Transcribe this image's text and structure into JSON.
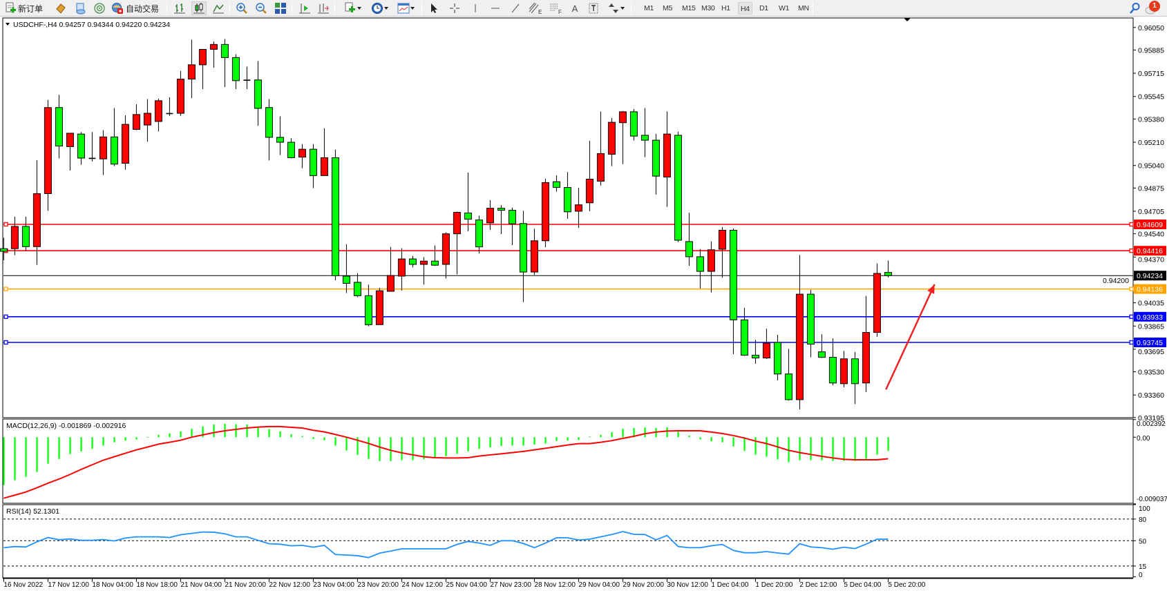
{
  "toolbar": {
    "new_order_label": "新订单",
    "autotrade_label": "自动交易",
    "timeframes": [
      "M1",
      "M5",
      "M15",
      "M30",
      "H1",
      "H4",
      "D1",
      "W1",
      "MN"
    ],
    "active_timeframe": "H4",
    "notification_count": "1",
    "fibo_channel_tag": "E",
    "fibo_tag": "F",
    "text_tool": "A"
  },
  "chart_data": [
    {
      "type": "candlestick",
      "title": "USDCHF-,H4  0.94257 0.94344 0.94220 0.94234",
      "symbol": "USDCHF-",
      "timeframe": "H4",
      "up_color": "#ff0000",
      "down_color": "#00ff00",
      "ylim": [
        0.93195,
        0.9605
      ],
      "y_ticks": [
        "0.96050",
        "0.95885",
        "0.95715",
        "0.95545",
        "0.95380",
        "0.95210",
        "0.95040",
        "0.94875",
        "0.94705",
        "0.94540",
        "0.94370",
        "0.94200",
        "0.94035",
        "0.93865",
        "0.93695",
        "0.93530",
        "0.93360",
        "0.93195"
      ],
      "x_tick_every": 4,
      "x_ticks": [
        "16 Nov 2022",
        "17 Nov 12:00",
        "18 Nov 04:00",
        "18 Nov 18:00",
        "21 Nov 04:00",
        "21 Nov 20:00",
        "22 Nov 12:00",
        "23 Nov 04:00",
        "23 Nov 20:00",
        "24 Nov 12:00",
        "25 Nov 04:00",
        "27 Nov 23:00",
        "28 Nov 12:00",
        "29 Nov 04:00",
        "29 Nov 20:00",
        "30 Nov 12:00",
        "1 Dec 04:00",
        "1 Dec 20:00",
        "2 Dec 12:00",
        "5 Dec 04:00",
        "5 Dec 20:00"
      ],
      "ohlc": [
        [
          0.94431,
          0.94511,
          0.94346,
          0.94412
        ],
        [
          0.94431,
          0.94665,
          0.94384,
          0.94594
        ],
        [
          0.94594,
          0.94665,
          0.94417,
          0.94446
        ],
        [
          0.94446,
          0.95079,
          0.94312,
          0.94834
        ],
        [
          0.94834,
          0.9552,
          0.94709,
          0.95464
        ],
        [
          0.95464,
          0.95557,
          0.95092,
          0.95182
        ],
        [
          0.95178,
          0.95276,
          0.95003,
          0.95276
        ],
        [
          0.9527,
          0.95285,
          0.95045,
          0.95094
        ],
        [
          0.95092,
          0.95285,
          0.95069,
          0.9509
        ],
        [
          0.95088,
          0.95298,
          0.9497,
          0.95249
        ],
        [
          0.95249,
          0.9546,
          0.95035,
          0.9505
        ],
        [
          0.95056,
          0.95407,
          0.95009,
          0.95341
        ],
        [
          0.95304,
          0.95488,
          0.95298,
          0.95413
        ],
        [
          0.95336,
          0.95526,
          0.95214,
          0.95422
        ],
        [
          0.95362,
          0.95529,
          0.95289,
          0.95514
        ],
        [
          0.95418,
          0.95539,
          0.95403,
          0.9542
        ],
        [
          0.95422,
          0.95732,
          0.95403,
          0.95672
        ],
        [
          0.95672,
          0.95961,
          0.95533,
          0.95777
        ],
        [
          0.95777,
          0.9589,
          0.95599,
          0.9589
        ],
        [
          0.9589,
          0.95948,
          0.95755,
          0.95926
        ],
        [
          0.95926,
          0.95965,
          0.95614,
          0.9583
        ],
        [
          0.9583,
          0.95854,
          0.95599,
          0.95661
        ],
        [
          0.95664,
          0.95764,
          0.95599,
          0.95662
        ],
        [
          0.95666,
          0.95805,
          0.9533,
          0.95458
        ],
        [
          0.95464,
          0.95526,
          0.95077,
          0.95246
        ],
        [
          0.95246,
          0.954,
          0.95116,
          0.9521
        ],
        [
          0.9521,
          0.9524,
          0.95092,
          0.95097
        ],
        [
          0.95101,
          0.95197,
          0.9502,
          0.95159
        ],
        [
          0.95159,
          0.95197,
          0.94874,
          0.94966
        ],
        [
          0.94966,
          0.95313,
          0.94966,
          0.95097
        ],
        [
          0.95097,
          0.95156,
          0.942,
          0.94233
        ],
        [
          0.9423,
          0.94464,
          0.94106,
          0.94177
        ],
        [
          0.94185,
          0.94252,
          0.94076,
          0.94087
        ],
        [
          0.94087,
          0.94168,
          0.93863,
          0.93875
        ],
        [
          0.93875,
          0.94145,
          0.93875,
          0.94123
        ],
        [
          0.94119,
          0.94444,
          0.94119,
          0.94235
        ],
        [
          0.9423,
          0.94434,
          0.94125,
          0.94356
        ],
        [
          0.94356,
          0.94378,
          0.94294,
          0.94316
        ],
        [
          0.94316,
          0.94369,
          0.94168,
          0.9434
        ],
        [
          0.9434,
          0.94455,
          0.94305,
          0.9431
        ],
        [
          0.94316,
          0.94551,
          0.94213,
          0.9454
        ],
        [
          0.9454,
          0.94703,
          0.94243,
          0.94697
        ],
        [
          0.94692,
          0.94988,
          0.94558,
          0.94647
        ],
        [
          0.94641,
          0.94673,
          0.94395,
          0.94444
        ],
        [
          0.9462,
          0.94786,
          0.94568,
          0.94727
        ],
        [
          0.94727,
          0.9475,
          0.94538,
          0.94712
        ],
        [
          0.94712,
          0.94731,
          0.94457,
          0.94613
        ],
        [
          0.94615,
          0.94709,
          0.9404,
          0.9426
        ],
        [
          0.9426,
          0.94577,
          0.94239,
          0.94489
        ],
        [
          0.94489,
          0.94943,
          0.94442,
          0.94915
        ],
        [
          0.94921,
          0.94968,
          0.94848,
          0.94879
        ],
        [
          0.94879,
          0.94992,
          0.9465,
          0.94701
        ],
        [
          0.94705,
          0.94876,
          0.94583,
          0.94752
        ],
        [
          0.94767,
          0.95221,
          0.94705,
          0.9494
        ],
        [
          0.94925,
          0.95435,
          0.94893,
          0.95127
        ],
        [
          0.95122,
          0.95388,
          0.95035,
          0.95356
        ],
        [
          0.95353,
          0.95439,
          0.9505,
          0.95433
        ],
        [
          0.95433,
          0.95454,
          0.95223,
          0.95255
        ],
        [
          0.95261,
          0.9546,
          0.95101,
          0.95225
        ],
        [
          0.95225,
          0.95272,
          0.94827,
          0.94962
        ],
        [
          0.94955,
          0.95435,
          0.94737,
          0.9527
        ],
        [
          0.95261,
          0.95287,
          0.94479,
          0.94493
        ],
        [
          0.94483,
          0.94694,
          0.94305,
          0.94372
        ],
        [
          0.94372,
          0.94429,
          0.9414,
          0.94265
        ],
        [
          0.94265,
          0.94485,
          0.94111,
          0.94423
        ],
        [
          0.94427,
          0.9459,
          0.94218,
          0.94566
        ],
        [
          0.94566,
          0.94579,
          0.93659,
          0.9391
        ],
        [
          0.9391,
          0.93999,
          0.93646,
          0.93651
        ],
        [
          0.93651,
          0.93764,
          0.93589,
          0.93631
        ],
        [
          0.93631,
          0.93845,
          0.93623,
          0.9374
        ],
        [
          0.93745,
          0.938,
          0.93467,
          0.93514
        ],
        [
          0.93514,
          0.93698,
          0.93319,
          0.93326
        ],
        [
          0.93326,
          0.94384,
          0.93255,
          0.94098
        ],
        [
          0.94098,
          0.9413,
          0.93636,
          0.93732
        ],
        [
          0.93676,
          0.93805,
          0.93631,
          0.93636
        ],
        [
          0.93636,
          0.93775,
          0.93432,
          0.93448
        ],
        [
          0.93443,
          0.93683,
          0.93417,
          0.93625
        ],
        [
          0.93625,
          0.93676,
          0.93294,
          0.93443
        ],
        [
          0.93448,
          0.94085,
          0.93381,
          0.93818
        ],
        [
          0.93818,
          0.94324,
          0.93786,
          0.9425
        ],
        [
          0.94257,
          0.94344,
          0.9422,
          0.94234
        ]
      ],
      "current_price": {
        "value": 0.94234,
        "label": "0.94234",
        "color": "#000000"
      },
      "horizontal_lines": [
        {
          "value": 0.94609,
          "label": "0.94609",
          "color": "#ff0000"
        },
        {
          "value": 0.94416,
          "label": "0.94416",
          "color": "#ff0000"
        },
        {
          "value": 0.94136,
          "label": "0.94136",
          "color": "#ffa500"
        },
        {
          "value": 0.93933,
          "label": "0.93933",
          "color": "#0000ff"
        },
        {
          "value": 0.93745,
          "label": "0.93745",
          "color": "#0000ff"
        }
      ],
      "annotation_arrow": {
        "color": "#ee2222",
        "from": {
          "bar": 79.8,
          "price": 0.934
        },
        "to": {
          "bar": 84.2,
          "price": 0.9417
        }
      }
    },
    {
      "type": "macd",
      "title": "MACD(12,26,9) -0.001869 -0.002916",
      "ylim": [
        -0.009037,
        0.002392
      ],
      "y_ticks": [
        "0.002392",
        "0.00",
        "-0.009037"
      ],
      "histogram_color": "#00ff00",
      "signal_color": "#ff0000",
      "histogram": [
        -0.00649,
        -0.00583,
        -0.00537,
        -0.00471,
        -0.00359,
        -0.00296,
        -0.00228,
        -0.00193,
        -0.00156,
        -0.00115,
        -0.00069,
        -0.00047,
        -0.00031,
        3e-05,
        0.00031,
        0.00053,
        0.00078,
        0.00115,
        0.00147,
        0.00172,
        0.00181,
        0.00175,
        0.00172,
        0.0014,
        0.00109,
        0.00078,
        0.00041,
        0.00016,
        -0.00025,
        -0.00041,
        -0.00115,
        -0.00181,
        -0.0024,
        -0.00296,
        -0.00324,
        -0.00324,
        -0.00312,
        -0.00312,
        -0.003,
        -0.00281,
        -0.00259,
        -0.00225,
        -0.00193,
        -0.00156,
        -0.0014,
        -0.00119,
        -0.00115,
        -0.00115,
        -0.001,
        -0.00087,
        -0.00053,
        -0.00047,
        -0.00037,
        9e-05,
        0.00031,
        0.00069,
        0.00115,
        0.00125,
        0.00131,
        0.00125,
        0.00134,
        0.00078,
        0.00022,
        -0.00031,
        -0.00056,
        -0.00069,
        -0.00125,
        -0.00187,
        -0.00237,
        -0.00265,
        -0.003,
        -0.0034,
        -0.00312,
        -0.00312,
        -0.00312,
        -0.00321,
        -0.00321,
        -0.00321,
        -0.00296,
        -0.00237,
        -0.001869
      ],
      "signal": [
        -0.00827,
        -0.00786,
        -0.00743,
        -0.00686,
        -0.00624,
        -0.00568,
        -0.00505,
        -0.00437,
        -0.00374,
        -0.00312,
        -0.00265,
        -0.00218,
        -0.00172,
        -0.00134,
        -0.00094,
        -0.00069,
        -0.00041,
        0.0,
        0.00031,
        0.00062,
        0.00087,
        0.00106,
        0.00125,
        0.00137,
        0.00144,
        0.00144,
        0.00134,
        0.00125,
        0.00094,
        0.00072,
        0.00037,
        0.0,
        -0.00041,
        -0.00084,
        -0.00134,
        -0.00178,
        -0.00212,
        -0.0024,
        -0.00265,
        -0.00278,
        -0.00281,
        -0.00281,
        -0.00278,
        -0.00256,
        -0.0024,
        -0.00225,
        -0.00209,
        -0.00193,
        -0.00172,
        -0.0015,
        -0.00128,
        -0.00106,
        -0.00087,
        -0.00087,
        -0.00069,
        -0.00047,
        -0.00016,
        0.00012,
        0.00047,
        0.00069,
        0.00084,
        0.00087,
        0.00087,
        0.00087,
        0.00069,
        0.0005,
        0.00022,
        -0.00012,
        -0.00053,
        -0.00087,
        -0.00131,
        -0.00178,
        -0.00209,
        -0.00234,
        -0.00259,
        -0.00281,
        -0.003,
        -0.00306,
        -0.00306,
        -0.00306,
        -0.002916
      ]
    },
    {
      "type": "line",
      "title": "RSI(14) 52.1301",
      "ylim": [
        0,
        100
      ],
      "y_ticks": [
        "100",
        "80",
        "50",
        "15",
        "0"
      ],
      "levels": [
        80,
        50,
        15
      ],
      "line_color": "#1e90ff",
      "values": [
        40.4,
        42.0,
        41.4,
        48.4,
        54.5,
        51.3,
        52.5,
        50.6,
        50.6,
        51.6,
        49.7,
        53.8,
        55.4,
        55.4,
        55.4,
        54.5,
        58.3,
        60.2,
        62.1,
        61.8,
        59.6,
        55.4,
        55.4,
        50.6,
        45.9,
        45.2,
        43.0,
        43.6,
        41.1,
        43.6,
        30.9,
        30.2,
        29.3,
        26.7,
        32.8,
        35.7,
        38.8,
        38.8,
        38.8,
        38.8,
        38.8,
        44.9,
        49.0,
        46.8,
        43.6,
        50.0,
        50.0,
        46.2,
        40.4,
        46.8,
        54.1,
        54.1,
        51.0,
        52.2,
        55.4,
        58.6,
        62.7,
        58.9,
        58.6,
        51.3,
        57.3,
        42.0,
        40.4,
        40.4,
        43.0,
        44.9,
        36.6,
        33.4,
        33.4,
        35.0,
        33.1,
        31.5,
        45.9,
        41.4,
        40.4,
        38.2,
        41.1,
        39.2,
        45.2,
        52.2,
        52.13
      ]
    }
  ]
}
